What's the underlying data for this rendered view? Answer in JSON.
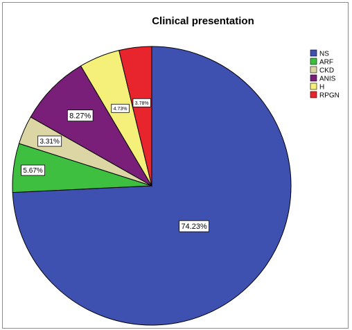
{
  "chart_data": {
    "type": "pie",
    "title": "Clinical presentation",
    "categories": [
      "NS",
      "ARF",
      "CKD",
      "ANIS",
      "H",
      "RPGN"
    ],
    "values": [
      74.23,
      5.67,
      3.31,
      8.27,
      4.73,
      3.78
    ],
    "labels": [
      "74.23%",
      "5.67%",
      "3.31%",
      "8.27%",
      "4.73%",
      "3.78%"
    ],
    "colors": [
      "#3f51b0",
      "#3fbf3f",
      "#dcd6a4",
      "#7a1f79",
      "#f5f07a",
      "#e8252c"
    ],
    "start_angle_deg": 0,
    "direction": "clockwise",
    "legend_position": "right"
  }
}
